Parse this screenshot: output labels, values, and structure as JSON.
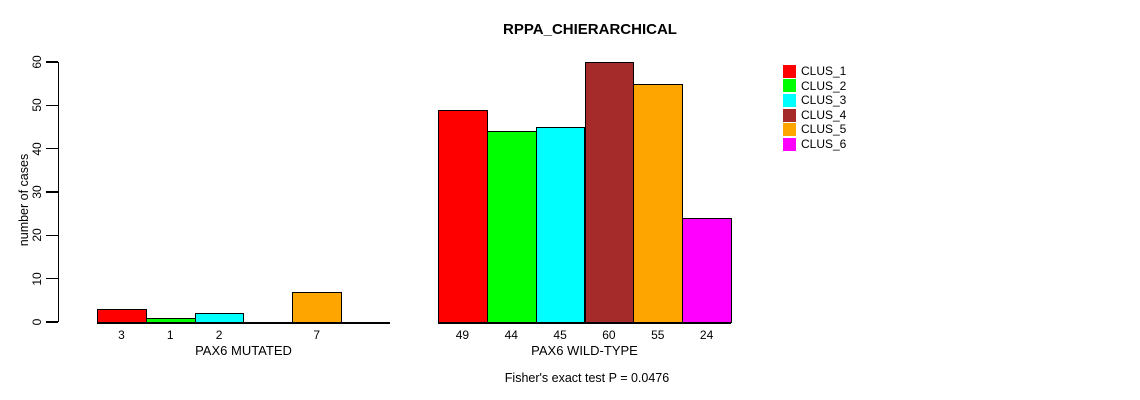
{
  "title": "RPPA_CHIERARCHICAL",
  "footer": "Fisher's exact test P = 0.0476",
  "chart_data": {
    "type": "bar",
    "title": "RPPA_CHIERARCHICAL",
    "xlabel": "",
    "ylabel": "number of cases",
    "ylim": [
      0,
      60
    ],
    "yticks": [
      0,
      10,
      20,
      30,
      40,
      50,
      60
    ],
    "grid": false,
    "legend_position": "right",
    "clusters": [
      "CLUS_1",
      "CLUS_2",
      "CLUS_3",
      "CLUS_4",
      "CLUS_5",
      "CLUS_6"
    ],
    "colors": [
      "#ff0000",
      "#00ff00",
      "#00ffff",
      "#a52a2a",
      "#ffa500",
      "#ff00ff"
    ],
    "groups": [
      {
        "label": "PAX6 MUTATED",
        "values": [
          3,
          1,
          2,
          0,
          7,
          0
        ],
        "bar_labels": [
          "3",
          "1",
          "2",
          "",
          "7",
          ""
        ]
      },
      {
        "label": "PAX6 WILD-TYPE",
        "values": [
          49,
          44,
          45,
          60,
          55,
          24
        ],
        "bar_labels": [
          "49",
          "44",
          "45",
          "60",
          "55",
          "24"
        ]
      }
    ],
    "annotation": "Fisher's exact test P = 0.0476"
  }
}
